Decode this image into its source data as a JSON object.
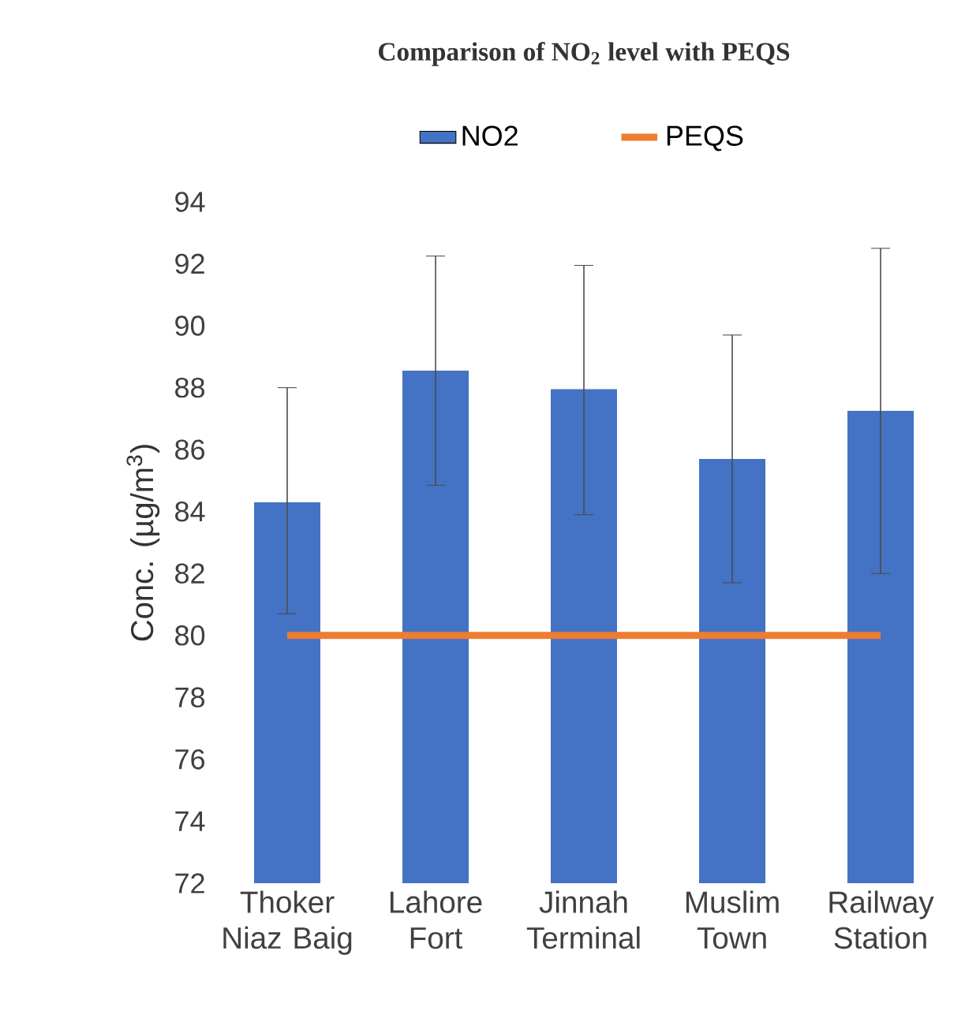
{
  "chart_data": {
    "type": "bar",
    "title": "Comparison of NO$_{2}$ level with PEQS",
    "ylabel": "Conc. (µg/m$^{3}$)",
    "categories": [
      "Thoker Niaz Baig",
      "Lahore Fort",
      "Jinnah Terminal",
      "Muslim Town",
      "Railway Station"
    ],
    "series": [
      {
        "name": "NO2",
        "color": "#4472c4",
        "values": [
          84.3,
          88.55,
          87.95,
          85.7,
          87.25
        ],
        "errors": [
          [
            80.7,
            88.0
          ],
          [
            84.85,
            92.25
          ],
          [
            83.9,
            91.95
          ],
          [
            81.7,
            89.7
          ],
          [
            82.0,
            92.5
          ]
        ]
      },
      {
        "name": "PEQS",
        "type": "line",
        "color": "#ed7d31",
        "values": [
          80,
          80,
          80,
          80,
          80
        ],
        "marker": "none"
      }
    ],
    "ylim": [
      72,
      94
    ],
    "yticks": [
      72,
      74,
      76,
      78,
      80,
      82,
      84,
      86,
      88,
      90,
      92,
      94
    ],
    "legend": "top"
  }
}
